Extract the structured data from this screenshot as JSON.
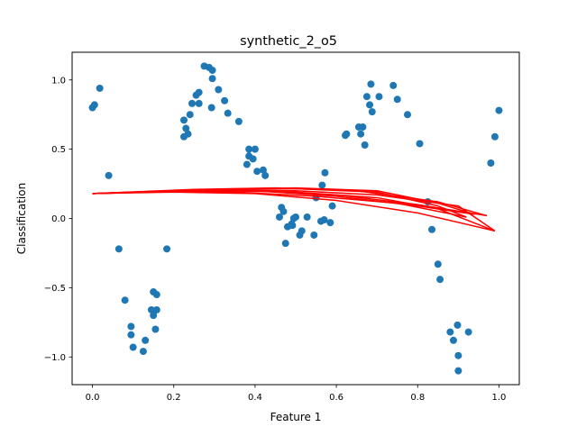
{
  "chart_data": {
    "type": "scatter",
    "title": "synthetic_2_o5",
    "xlabel": "Feature 1",
    "ylabel": "Classification",
    "xlim": [
      -0.05,
      1.05
    ],
    "ylim": [
      -1.2,
      1.2
    ],
    "xticks": [
      0.0,
      0.2,
      0.4,
      0.6,
      0.8,
      1.0
    ],
    "xtick_labels": [
      "0.0",
      "0.2",
      "0.4",
      "0.6",
      "0.8",
      "1.0"
    ],
    "yticks": [
      -1.0,
      -0.5,
      0.0,
      0.5,
      1.0
    ],
    "ytick_labels": [
      "−1.0",
      "−0.5",
      "0.0",
      "0.5",
      "1.0"
    ],
    "grid": false,
    "colors": {
      "points": "#1f77b4",
      "fit": "#ff0000"
    },
    "points": [
      [
        0.0,
        0.8
      ],
      [
        0.005,
        0.82
      ],
      [
        0.018,
        0.94
      ],
      [
        0.04,
        0.31
      ],
      [
        0.065,
        -0.22
      ],
      [
        0.08,
        -0.59
      ],
      [
        0.095,
        -0.78
      ],
      [
        0.095,
        -0.84
      ],
      [
        0.1,
        -0.93
      ],
      [
        0.125,
        -0.96
      ],
      [
        0.13,
        -0.88
      ],
      [
        0.145,
        -0.66
      ],
      [
        0.15,
        -0.7
      ],
      [
        0.15,
        -0.53
      ],
      [
        0.155,
        -0.8
      ],
      [
        0.158,
        -0.55
      ],
      [
        0.158,
        -0.66
      ],
      [
        0.183,
        -0.22
      ],
      [
        0.225,
        0.71
      ],
      [
        0.225,
        0.59
      ],
      [
        0.23,
        0.65
      ],
      [
        0.235,
        0.61
      ],
      [
        0.24,
        0.75
      ],
      [
        0.245,
        0.83
      ],
      [
        0.255,
        0.89
      ],
      [
        0.262,
        0.91
      ],
      [
        0.262,
        0.83
      ],
      [
        0.275,
        1.1
      ],
      [
        0.287,
        1.09
      ],
      [
        0.293,
        0.8
      ],
      [
        0.295,
        1.01
      ],
      [
        0.295,
        1.07
      ],
      [
        0.31,
        0.93
      ],
      [
        0.325,
        0.85
      ],
      [
        0.333,
        0.76
      ],
      [
        0.36,
        0.7
      ],
      [
        0.38,
        0.39
      ],
      [
        0.385,
        0.5
      ],
      [
        0.385,
        0.45
      ],
      [
        0.395,
        0.43
      ],
      [
        0.4,
        0.5
      ],
      [
        0.405,
        0.34
      ],
      [
        0.42,
        0.35
      ],
      [
        0.425,
        0.31
      ],
      [
        0.46,
        0.01
      ],
      [
        0.465,
        0.08
      ],
      [
        0.47,
        0.05
      ],
      [
        0.475,
        -0.18
      ],
      [
        0.48,
        -0.06
      ],
      [
        0.49,
        -0.04
      ],
      [
        0.492,
        -0.05
      ],
      [
        0.495,
        0.0
      ],
      [
        0.5,
        0.01
      ],
      [
        0.51,
        -0.12
      ],
      [
        0.515,
        -0.09
      ],
      [
        0.528,
        0.01
      ],
      [
        0.545,
        -0.12
      ],
      [
        0.55,
        0.15
      ],
      [
        0.562,
        -0.02
      ],
      [
        0.565,
        0.24
      ],
      [
        0.57,
        -0.01
      ],
      [
        0.572,
        0.33
      ],
      [
        0.585,
        -0.03
      ],
      [
        0.59,
        0.09
      ],
      [
        0.622,
        0.6
      ],
      [
        0.625,
        0.61
      ],
      [
        0.655,
        0.66
      ],
      [
        0.66,
        0.61
      ],
      [
        0.665,
        0.66
      ],
      [
        0.67,
        0.53
      ],
      [
        0.675,
        0.88
      ],
      [
        0.682,
        0.82
      ],
      [
        0.685,
        0.97
      ],
      [
        0.688,
        0.77
      ],
      [
        0.705,
        0.88
      ],
      [
        0.74,
        0.96
      ],
      [
        0.75,
        0.86
      ],
      [
        0.775,
        0.75
      ],
      [
        0.805,
        0.54
      ],
      [
        0.825,
        0.12
      ],
      [
        0.835,
        -0.08
      ],
      [
        0.85,
        -0.33
      ],
      [
        0.855,
        -0.44
      ],
      [
        0.88,
        -0.82
      ],
      [
        0.888,
        -0.88
      ],
      [
        0.898,
        -0.77
      ],
      [
        0.9,
        -0.99
      ],
      [
        0.9,
        -1.1
      ],
      [
        0.925,
        -0.82
      ],
      [
        0.98,
        0.4
      ],
      [
        0.99,
        0.59
      ],
      [
        1.0,
        0.78
      ]
    ],
    "fit_lines": [
      {
        "x": [
          0.0,
          0.3,
          0.5,
          0.7,
          0.9,
          0.99
        ],
        "y": [
          0.18,
          0.205,
          0.2,
          0.17,
          0.09,
          -0.09
        ]
      },
      {
        "x": [
          0.99,
          0.8,
          0.6,
          0.4,
          0.2,
          0.0
        ],
        "y": [
          -0.09,
          0.04,
          0.13,
          0.18,
          0.19,
          0.18
        ]
      },
      {
        "x": [
          0.0,
          0.25,
          0.45,
          0.65,
          0.85,
          0.97
        ],
        "y": [
          0.18,
          0.21,
          0.22,
          0.2,
          0.12,
          0.02
        ]
      },
      {
        "x": [
          0.97,
          0.8,
          0.6,
          0.4,
          0.2,
          0.0
        ],
        "y": [
          0.02,
          0.1,
          0.17,
          0.2,
          0.2,
          0.18
        ]
      },
      {
        "x": [
          0.0,
          0.3,
          0.5,
          0.7,
          0.85,
          0.92
        ],
        "y": [
          0.18,
          0.21,
          0.215,
          0.19,
          0.09,
          0.01
        ]
      },
      {
        "x": [
          0.92,
          0.75,
          0.55,
          0.35,
          0.15,
          0.0
        ],
        "y": [
          0.01,
          0.11,
          0.16,
          0.19,
          0.19,
          0.18
        ]
      },
      {
        "x": [
          0.0,
          0.3,
          0.5,
          0.7,
          0.85,
          0.94
        ],
        "y": [
          0.18,
          0.21,
          0.22,
          0.2,
          0.11,
          0.03
        ]
      },
      {
        "x": [
          0.94,
          0.8,
          0.6,
          0.4,
          0.2,
          0.0
        ],
        "y": [
          0.03,
          0.09,
          0.16,
          0.2,
          0.2,
          0.18
        ]
      },
      {
        "x": [
          0.0,
          0.3,
          0.5,
          0.7,
          0.85,
          0.99
        ],
        "y": [
          0.18,
          0.2,
          0.19,
          0.15,
          0.07,
          -0.09
        ]
      }
    ]
  }
}
